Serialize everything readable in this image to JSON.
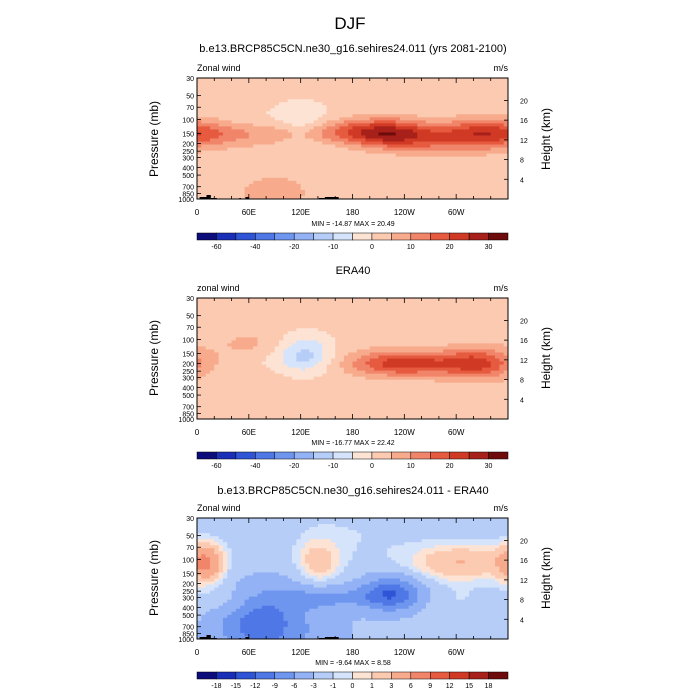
{
  "figure_title": "DJF",
  "chart_data": [
    {
      "type": "heatmap",
      "title": "b.e13.BRCP85C5CN.ne30_g16.sehires24.011 (yrs 2081-2100)",
      "left_label": "Zonal wind",
      "right_label": "m/s",
      "ylabel": "Pressure (mb)",
      "y2label": "Height (km)",
      "x_ticks": [
        "0",
        "60E",
        "120E",
        "180",
        "120W",
        "60W"
      ],
      "x_tick_values": [
        0,
        60,
        120,
        180,
        240,
        300
      ],
      "xlim": [
        0,
        360
      ],
      "y_ticks": [
        "30",
        "50",
        "70",
        "100",
        "150",
        "200",
        "250",
        "300",
        "400",
        "500",
        "700",
        "850",
        "1000"
      ],
      "y_tick_values": [
        30,
        50,
        70,
        100,
        150,
        200,
        250,
        300,
        400,
        500,
        700,
        850,
        1000
      ],
      "ylim": [
        1000,
        30
      ],
      "y2_ticks": [
        "20",
        "16",
        "12",
        "8",
        "4"
      ],
      "y2_tick_values": [
        20,
        16,
        12,
        8,
        4
      ],
      "stats": "MIN = -14.87  MAX =  20.49",
      "min": -14.87,
      "max": 20.49,
      "colorbar_labels": [
        "-60",
        "-40",
        "-20",
        "-10",
        "0",
        "10",
        "20",
        "30"
      ],
      "colorbar_levels": [
        -70,
        -60,
        -50,
        -40,
        -30,
        -20,
        -15,
        -10,
        -5,
        0,
        5,
        10,
        15,
        20,
        25,
        30
      ],
      "colorbar_label_slots": [
        1,
        3,
        5,
        7,
        9,
        11,
        13,
        15
      ],
      "background_value": 1,
      "features": [
        {
          "lon": 140,
          "p": 148,
          "value": 14,
          "spread_lon": 80,
          "spread_z": 2.2
        },
        {
          "lon": 25,
          "p": 150,
          "value": 8,
          "spread_lon": 30,
          "spread_z": 2.0
        },
        {
          "lon": 60,
          "p": 130,
          "value": -4,
          "spread_lon": 35,
          "spread_z": 2.0
        },
        {
          "lon": 122,
          "p": 130,
          "value": -10,
          "spread_lon": 22,
          "spread_z": 1.4
        },
        {
          "lon": 170,
          "p": 200,
          "value": -2,
          "spread_lon": 35,
          "spread_z": 3.0
        },
        {
          "lon": 220,
          "p": 150,
          "value": 19,
          "spread_lon": 34,
          "spread_z": 1.8
        },
        {
          "lon": 330,
          "p": 150,
          "value": 19,
          "spread_lon": 30,
          "spread_z": 1.8
        },
        {
          "lon": 275,
          "p": 180,
          "value": 10,
          "spread_lon": 35,
          "spread_z": 2.0
        },
        {
          "lon": 90,
          "p": 820,
          "value": 5,
          "spread_lon": 50,
          "spread_z": 0.9
        },
        {
          "lon": 320,
          "p": 800,
          "value": 3,
          "spread_lon": 40,
          "spread_z": 0.9
        }
      ],
      "has_topography": true
    },
    {
      "type": "heatmap",
      "title": "ERA40",
      "left_label": "zonal wind",
      "right_label": "m/s",
      "ylabel": "Pressure (mb)",
      "y2label": "Height (km)",
      "x_ticks": [
        "0",
        "60E",
        "120E",
        "180",
        "120W",
        "60W"
      ],
      "x_tick_values": [
        0,
        60,
        120,
        180,
        240,
        300
      ],
      "xlim": [
        0,
        360
      ],
      "y_ticks": [
        "30",
        "50",
        "70",
        "100",
        "150",
        "200",
        "250",
        "300",
        "400",
        "500",
        "700",
        "850",
        "1000"
      ],
      "y_tick_values": [
        30,
        50,
        70,
        100,
        150,
        200,
        250,
        300,
        400,
        500,
        700,
        850,
        1000
      ],
      "ylim": [
        1000,
        30
      ],
      "y2_ticks": [
        "20",
        "16",
        "12",
        "8",
        "4"
      ],
      "y2_tick_values": [
        20,
        16,
        12,
        8,
        4
      ],
      "stats": "MIN = -16.77  MAX =  22.42",
      "min": -16.77,
      "max": 22.42,
      "colorbar_labels": [
        "-60",
        "-40",
        "-20",
        "-10",
        "0",
        "10",
        "20",
        "30"
      ],
      "colorbar_levels": [
        -70,
        -60,
        -50,
        -40,
        -30,
        -20,
        -15,
        -10,
        -5,
        0,
        5,
        10,
        15,
        20,
        25,
        30
      ],
      "colorbar_label_slots": [
        1,
        3,
        5,
        7,
        9,
        11,
        13,
        15
      ],
      "background_value": 2,
      "features": [
        {
          "lon": 125,
          "p": 150,
          "value": -12,
          "spread_lon": 22,
          "spread_z": 1.4
        },
        {
          "lon": 95,
          "p": 180,
          "value": -3,
          "spread_lon": 40,
          "spread_z": 2.5
        },
        {
          "lon": 30,
          "p": 300,
          "value": -1,
          "spread_lon": 20,
          "spread_z": 3.0
        },
        {
          "lon": 235,
          "p": 200,
          "value": 21,
          "spread_lon": 40,
          "spread_z": 2.2
        },
        {
          "lon": 330,
          "p": 200,
          "value": 16,
          "spread_lon": 28,
          "spread_z": 1.8
        },
        {
          "lon": 300,
          "p": 200,
          "value": 6,
          "spread_lon": 30,
          "spread_z": 2.0
        },
        {
          "lon": 60,
          "p": 120,
          "value": 4,
          "spread_lon": 30,
          "spread_z": 1.5
        }
      ],
      "has_topography": false
    },
    {
      "type": "heatmap",
      "title": "b.e13.BRCP85C5CN.ne30_g16.sehires24.011 - ERA40",
      "left_label": "Zonal wind",
      "right_label": "m/s",
      "ylabel": "Pressure (mb)",
      "y2label": "Height (km)",
      "x_ticks": [
        "0",
        "60E",
        "120E",
        "180",
        "120W",
        "60W"
      ],
      "x_tick_values": [
        0,
        60,
        120,
        180,
        240,
        300
      ],
      "xlim": [
        0,
        360
      ],
      "y_ticks": [
        "30",
        "50",
        "70",
        "100",
        "150",
        "200",
        "250",
        "300",
        "400",
        "500",
        "700",
        "850",
        "1000"
      ],
      "y_tick_values": [
        30,
        50,
        70,
        100,
        150,
        200,
        250,
        300,
        400,
        500,
        700,
        850,
        1000
      ],
      "ylim": [
        1000,
        30
      ],
      "y2_ticks": [
        "20",
        "16",
        "12",
        "8",
        "4"
      ],
      "y2_tick_values": [
        20,
        16,
        12,
        8,
        4
      ],
      "stats": "MIN =  -9.64  MAX =   8.58",
      "min": -9.64,
      "max": 8.58,
      "colorbar_labels": [
        "-18",
        "-15",
        "-12",
        "-9",
        "-6",
        "-3",
        "-1",
        "0",
        "1",
        "3",
        "6",
        "9",
        "12",
        "15",
        "18"
      ],
      "colorbar_levels": [
        -21,
        -18,
        -15,
        -12,
        -9,
        -6,
        -3,
        -1,
        0,
        1,
        3,
        6,
        9,
        12,
        15,
        18
      ],
      "colorbar_label_slots": [
        1,
        2,
        3,
        4,
        5,
        6,
        7,
        8,
        9,
        10,
        11,
        12,
        13,
        14,
        15
      ],
      "background_value": -2,
      "features": [
        {
          "lon": 225,
          "p": 270,
          "value": -10,
          "spread_lon": 24,
          "spread_z": 1.6
        },
        {
          "lon": 150,
          "p": 300,
          "value": -4,
          "spread_lon": 40,
          "spread_z": 2.5
        },
        {
          "lon": 10,
          "p": 110,
          "value": 8,
          "spread_lon": 15,
          "spread_z": 1.4
        },
        {
          "lon": 140,
          "p": 110,
          "value": 4,
          "spread_lon": 18,
          "spread_z": 1.2
        },
        {
          "lon": 305,
          "p": 110,
          "value": 5,
          "spread_lon": 40,
          "spread_z": 1.5
        },
        {
          "lon": 35,
          "p": 330,
          "value": 2,
          "spread_lon": 25,
          "spread_z": 2.0
        },
        {
          "lon": 70,
          "p": 600,
          "value": -6,
          "spread_lon": 30,
          "spread_z": 1.0
        },
        {
          "lon": 300,
          "p": 320,
          "value": 1,
          "spread_lon": 35,
          "spread_z": 2.0
        },
        {
          "lon": 180,
          "p": 50,
          "value": 1,
          "spread_lon": 60,
          "spread_z": 0.7
        },
        {
          "lon": 50,
          "p": 45,
          "value": 0,
          "spread_lon": 30,
          "spread_z": 0.6
        },
        {
          "lon": 95,
          "p": 950,
          "value": -4,
          "spread_lon": 50,
          "spread_z": 0.5
        }
      ],
      "has_topography": true
    }
  ]
}
